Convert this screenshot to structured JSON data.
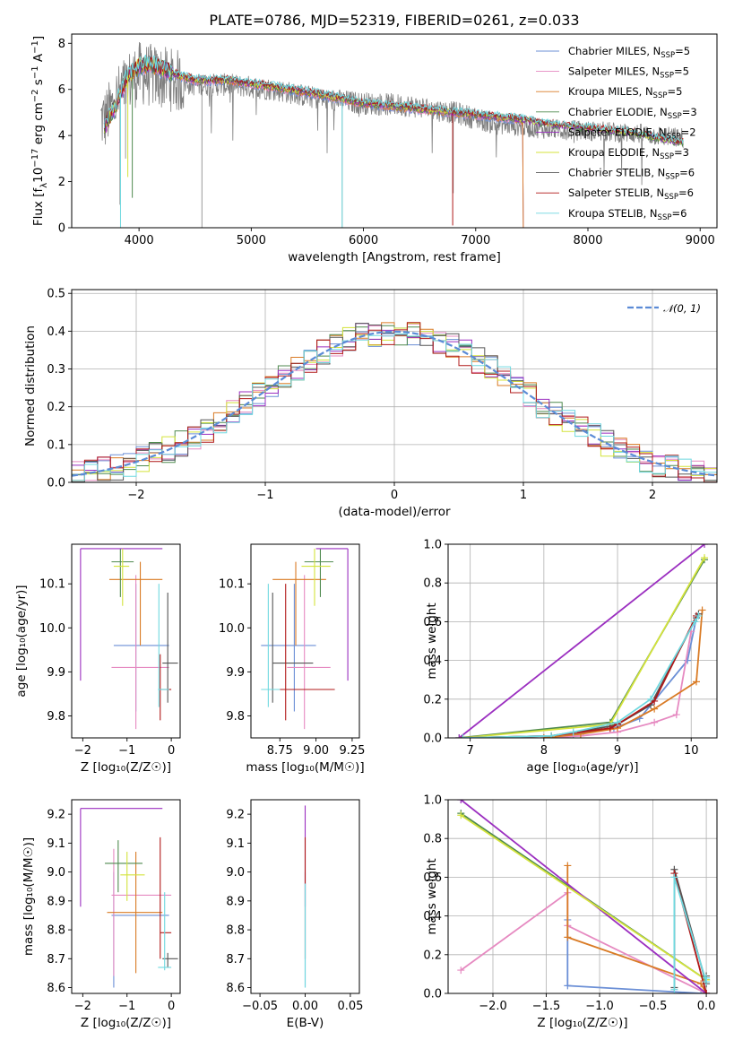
{
  "title": "PLATE=0786, MJD=52319, FIBERID=0261, z=0.033",
  "colors": {
    "Chabrier MILES": "#6b8fd6",
    "Salpeter MILES": "#e68ac1",
    "Kroupa MILES": "#d97b25",
    "Chabrier ELODIE": "#4f8a4f",
    "Salpeter ELODIE": "#9b2fc0",
    "Kroupa ELODIE": "#d4e33b",
    "Chabrier STELIB": "#555555",
    "Salpeter STELIB": "#b01818",
    "Kroupa STELIB": "#6fd8df",
    "data": "#7f7f7f",
    "gauss": "#5b8bd6"
  },
  "chart_data": [
    {
      "id": "spectrum",
      "type": "line",
      "title": "PLATE=0786, MJD=52319, FIBERID=0261, z=0.033",
      "xlabel": "wavelength [Angstrom, rest frame]",
      "ylabel_main": "Flux [f",
      "ylabel_sub": "λ",
      "ylabel_rest1": "10",
      "ylabel_sup1": "−17",
      "ylabel_rest2": " erg cm",
      "ylabel_sup2": "−2",
      "ylabel_rest3": " s",
      "ylabel_sup3": "−1",
      "ylabel_rest4": " A",
      "ylabel_sup4": "−1",
      "ylabel_end": "]",
      "xlim": [
        3400,
        9150
      ],
      "ylim": [
        0,
        8.4
      ],
      "xticks": [
        4000,
        5000,
        6000,
        7000,
        8000,
        9000
      ],
      "yticks": [
        0,
        2,
        4,
        6,
        8
      ],
      "legend_pos": "top-right",
      "legend": [
        {
          "name": "Chabrier MILES, N",
          "sub": "SSP",
          "eq": "=5"
        },
        {
          "name": "Salpeter MILES, N",
          "sub": "SSP",
          "eq": "=5"
        },
        {
          "name": "Kroupa MILES, N",
          "sub": "SSP",
          "eq": "=5"
        },
        {
          "name": "Chabrier ELODIE, N",
          "sub": "SSP",
          "eq": "=3"
        },
        {
          "name": "Salpeter ELODIE, N",
          "sub": "SSP",
          "eq": "=2"
        },
        {
          "name": "Kroupa ELODIE, N",
          "sub": "SSP",
          "eq": "=3"
        },
        {
          "name": "Chabrier STELIB, N",
          "sub": "SSP",
          "eq": "=6"
        },
        {
          "name": "Salpeter STELIB, N",
          "sub": "SSP",
          "eq": "=6"
        },
        {
          "name": "Kroupa STELIB, N",
          "sub": "SSP",
          "eq": "=6"
        }
      ],
      "data_envelope": [
        [
          3700,
          4.7
        ],
        [
          3800,
          5.6
        ],
        [
          3900,
          6.3
        ],
        [
          4000,
          6.7
        ],
        [
          4100,
          6.6
        ],
        [
          4300,
          6.4
        ],
        [
          4500,
          6.2
        ],
        [
          4800,
          6.2
        ],
        [
          5200,
          6.0
        ],
        [
          5600,
          5.6
        ],
        [
          6000,
          5.4
        ],
        [
          6400,
          5.3
        ],
        [
          6800,
          5.0
        ],
        [
          7200,
          4.5
        ],
        [
          7600,
          4.3
        ],
        [
          8000,
          4.2
        ],
        [
          8400,
          4.1
        ],
        [
          8800,
          3.9
        ]
      ],
      "model_envelope": [
        [
          3700,
          4.4
        ],
        [
          3800,
          5.4
        ],
        [
          3900,
          6.6
        ],
        [
          4000,
          7.0
        ],
        [
          4100,
          7.1
        ],
        [
          4300,
          6.7
        ],
        [
          4500,
          6.4
        ],
        [
          4800,
          6.4
        ],
        [
          5200,
          6.1
        ],
        [
          5600,
          5.8
        ],
        [
          6000,
          5.4
        ],
        [
          6400,
          5.2
        ],
        [
          6800,
          5.0
        ],
        [
          7200,
          4.8
        ],
        [
          7400,
          4.7
        ],
        [
          7600,
          4.5
        ],
        [
          8000,
          4.3
        ],
        [
          8400,
          4.1
        ],
        [
          8800,
          3.7
        ]
      ],
      "miles_cutoff": 7420
    },
    {
      "id": "residuals",
      "type": "histogram",
      "xlabel": "(data-model)/error",
      "ylabel": "Normed distribution",
      "xlim": [
        -2.5,
        2.5
      ],
      "ylim": [
        0,
        0.51
      ],
      "xticks": [
        -2,
        -1,
        0,
        1,
        2
      ],
      "yticks": [
        0.0,
        0.1,
        0.2,
        0.3,
        0.4,
        0.5
      ],
      "grid": true,
      "legend_pos": "top-right",
      "legend_label": "𝒩(0, 1)",
      "bin_width": 0.1
    },
    {
      "id": "z-age",
      "type": "errorbar",
      "xlabel": "Z [log₁₀(Z/Z☉)]",
      "ylabel": "age  [log₁₀(age/yr)]",
      "xlim": [
        -2.25,
        0.2
      ],
      "ylim": [
        9.75,
        10.19
      ],
      "xticks": [
        -2,
        -1,
        0
      ],
      "yticks": [
        9.8,
        9.9,
        10.0,
        10.1
      ],
      "points": [
        {
          "c": "Chabrier MILES",
          "x": -0.8,
          "xe": [
            -1.3,
            -0.05
          ],
          "y": 9.96,
          "ye": [
            9.81,
            10.1
          ]
        },
        {
          "c": "Salpeter MILES",
          "x": -0.8,
          "xe": [
            -1.35,
            -0.05
          ],
          "y": 9.91,
          "ye": [
            9.77,
            10.12
          ]
        },
        {
          "c": "Kroupa MILES",
          "x": -0.7,
          "xe": [
            -1.4,
            -0.2
          ],
          "y": 10.11,
          "ye": [
            9.96,
            10.15
          ]
        },
        {
          "c": "Chabrier ELODIE",
          "x": -1.15,
          "xe": [
            -1.35,
            -0.85
          ],
          "y": 10.15,
          "ye": [
            10.07,
            10.18
          ]
        },
        {
          "c": "Salpeter ELODIE",
          "x": -2.05,
          "xe": [
            -2.05,
            -0.2
          ],
          "y": 10.18,
          "ye": [
            9.88,
            10.18
          ]
        },
        {
          "c": "Kroupa ELODIE",
          "x": -1.1,
          "xe": [
            -1.3,
            -0.95
          ],
          "y": 10.14,
          "ye": [
            10.05,
            10.18
          ]
        },
        {
          "c": "Chabrier STELIB",
          "x": -0.08,
          "xe": [
            -0.2,
            0.15
          ],
          "y": 9.92,
          "ye": [
            9.83,
            10.08
          ]
        },
        {
          "c": "Salpeter STELIB",
          "x": -0.25,
          "xe": [
            -0.25,
            0.0
          ],
          "y": 9.86,
          "ye": [
            9.79,
            9.94
          ]
        },
        {
          "c": "Kroupa STELIB",
          "x": -0.28,
          "xe": [
            -0.3,
            -0.05
          ],
          "y": 9.86,
          "ye": [
            9.82,
            10.1
          ]
        }
      ]
    },
    {
      "id": "mass-age",
      "type": "errorbar",
      "xlabel": "mass [log₁₀(M/M☉)]",
      "ylabel": "",
      "xlim": [
        8.55,
        9.3
      ],
      "ylim": [
        9.75,
        10.19
      ],
      "xticks": [
        8.75,
        9.0,
        9.25
      ],
      "yticks": [
        9.8,
        9.9,
        10.0,
        10.1
      ],
      "points": [
        {
          "c": "Chabrier MILES",
          "x": 8.85,
          "xe": [
            8.62,
            9.0
          ],
          "y": 9.96,
          "ye": [
            9.81,
            10.1
          ]
        },
        {
          "c": "Salpeter MILES",
          "x": 8.92,
          "xe": [
            8.8,
            9.1
          ],
          "y": 9.91,
          "ye": [
            9.77,
            10.12
          ]
        },
        {
          "c": "Kroupa MILES",
          "x": 8.86,
          "xe": [
            8.7,
            9.07
          ],
          "y": 10.11,
          "ye": [
            9.96,
            10.15
          ]
        },
        {
          "c": "Chabrier ELODIE",
          "x": 9.03,
          "xe": [
            8.92,
            9.12
          ],
          "y": 10.15,
          "ye": [
            10.07,
            10.18
          ]
        },
        {
          "c": "Salpeter ELODIE",
          "x": 9.22,
          "xe": [
            9.0,
            9.22
          ],
          "y": 10.18,
          "ye": [
            9.88,
            10.18
          ]
        },
        {
          "c": "Kroupa ELODIE",
          "x": 8.99,
          "xe": [
            8.9,
            9.1
          ],
          "y": 10.14,
          "ye": [
            10.05,
            10.18
          ]
        },
        {
          "c": "Chabrier STELIB",
          "x": 8.7,
          "xe": [
            8.7,
            8.98
          ],
          "y": 9.92,
          "ye": [
            9.83,
            10.08
          ]
        },
        {
          "c": "Salpeter STELIB",
          "x": 8.79,
          "xe": [
            8.75,
            9.13
          ],
          "y": 9.86,
          "ye": [
            9.79,
            10.1
          ]
        },
        {
          "c": "Kroupa STELIB",
          "x": 8.67,
          "xe": [
            8.62,
            8.75
          ],
          "y": 9.86,
          "ye": [
            9.82,
            10.1
          ]
        }
      ]
    },
    {
      "id": "age-massweight",
      "type": "line",
      "xlabel": "age  [log₁₀(age/yr)]",
      "ylabel": "mass weight",
      "xlim": [
        6.7,
        10.35
      ],
      "ylim": [
        0,
        1.0
      ],
      "xticks": [
        7,
        8,
        9,
        10
      ],
      "yticks": [
        0.0,
        0.2,
        0.4,
        0.6,
        0.8,
        1.0
      ],
      "grid": true,
      "series": [
        {
          "c": "Chabrier MILES",
          "x": [
            8.0,
            8.4,
            8.95,
            9.3,
            9.95,
            10.07
          ],
          "y": [
            0.0,
            0.02,
            0.05,
            0.1,
            0.4,
            0.62
          ]
        },
        {
          "c": "Salpeter MILES",
          "x": [
            8.0,
            8.5,
            9.0,
            9.5,
            9.8,
            10.0
          ],
          "y": [
            0.0,
            0.01,
            0.03,
            0.08,
            0.12,
            0.55
          ]
        },
        {
          "c": "Kroupa MILES",
          "x": [
            8.0,
            8.5,
            9.0,
            9.5,
            10.07,
            10.15
          ],
          "y": [
            0.0,
            0.02,
            0.05,
            0.15,
            0.29,
            0.66
          ]
        },
        {
          "c": "Chabrier ELODIE",
          "x": [
            6.85,
            8.9,
            10.18
          ],
          "y": [
            0.0,
            0.08,
            0.92
          ]
        },
        {
          "c": "Salpeter ELODIE",
          "x": [
            6.85,
            10.18
          ],
          "y": [
            0.0,
            1.0
          ]
        },
        {
          "c": "Kroupa ELODIE",
          "x": [
            6.9,
            8.9,
            10.18
          ],
          "y": [
            0.0,
            0.07,
            0.93
          ]
        },
        {
          "c": "Chabrier STELIB",
          "x": [
            6.9,
            8.1,
            8.9,
            9.0,
            9.45,
            10.07,
            10.1
          ],
          "y": [
            0.0,
            0.01,
            0.06,
            0.07,
            0.17,
            0.62,
            0.64
          ]
        },
        {
          "c": "Salpeter STELIB",
          "x": [
            6.9,
            8.1,
            8.9,
            9.0,
            9.5,
            10.07
          ],
          "y": [
            0.0,
            0.01,
            0.05,
            0.07,
            0.19,
            0.63
          ]
        },
        {
          "c": "Kroupa STELIB",
          "x": [
            6.9,
            8.1,
            8.4,
            9.0,
            9.45,
            10.05,
            10.1
          ],
          "y": [
            0.0,
            0.01,
            0.03,
            0.08,
            0.2,
            0.6,
            0.63
          ]
        }
      ]
    },
    {
      "id": "z-mass",
      "type": "errorbar",
      "xlabel": "Z [log₁₀(Z/Z☉)]",
      "ylabel": "mass [log₁₀(M/M☉)]",
      "xlim": [
        -2.25,
        0.2
      ],
      "ylim": [
        8.58,
        9.25
      ],
      "xticks": [
        -2,
        -1,
        0
      ],
      "yticks": [
        8.6,
        8.7,
        8.8,
        8.9,
        9.0,
        9.1,
        9.2
      ],
      "points": [
        {
          "c": "Chabrier MILES",
          "x": -1.3,
          "xe": [
            -1.35,
            -0.05
          ],
          "y": 8.85,
          "ye": [
            8.6,
            9.0
          ]
        },
        {
          "c": "Salpeter MILES",
          "x": -1.3,
          "xe": [
            -1.35,
            0.0
          ],
          "y": 8.92,
          "ye": [
            8.64,
            9.08
          ]
        },
        {
          "c": "Kroupa MILES",
          "x": -0.8,
          "xe": [
            -1.45,
            -0.2
          ],
          "y": 8.86,
          "ye": [
            8.65,
            9.07
          ]
        },
        {
          "c": "Chabrier ELODIE",
          "x": -1.2,
          "xe": [
            -1.5,
            -0.65
          ],
          "y": 9.03,
          "ye": [
            8.93,
            9.11
          ]
        },
        {
          "c": "Salpeter ELODIE",
          "x": -2.05,
          "xe": [
            -2.05,
            -0.2
          ],
          "y": 9.22,
          "ye": [
            8.88,
            9.22
          ]
        },
        {
          "c": "Kroupa ELODIE",
          "x": -1.0,
          "xe": [
            -1.15,
            -0.6
          ],
          "y": 8.99,
          "ye": [
            8.9,
            9.07
          ]
        },
        {
          "c": "Chabrier STELIB",
          "x": -0.08,
          "xe": [
            -0.2,
            0.15
          ],
          "y": 8.7,
          "ye": [
            8.67,
            8.72
          ]
        },
        {
          "c": "Salpeter STELIB",
          "x": -0.25,
          "xe": [
            -0.25,
            0.0
          ],
          "y": 8.79,
          "ye": [
            8.7,
            9.12
          ]
        },
        {
          "c": "Kroupa STELIB",
          "x": -0.15,
          "xe": [
            -0.3,
            0.0
          ],
          "y": 8.67,
          "ye": [
            8.66,
            8.93
          ]
        }
      ]
    },
    {
      "id": "ebv-mass",
      "type": "errorbar",
      "xlabel": "E(B-V)",
      "ylabel": "",
      "xlim": [
        -0.06,
        0.06
      ],
      "ylim": [
        8.58,
        9.25
      ],
      "xticks": [
        -0.05,
        0.0,
        0.05
      ],
      "xticklabels": [
        "−0.05",
        "0.00",
        "0.05"
      ],
      "yticks": [
        8.6,
        8.7,
        8.8,
        8.9,
        9.0,
        9.1,
        9.2
      ],
      "points": [
        {
          "c": "Chabrier MILES",
          "x": 0.0,
          "xe": [
            0.0,
            0.0
          ],
          "y": 8.85,
          "ye": [
            8.6,
            9.0
          ]
        },
        {
          "c": "Salpeter ELODIE",
          "x": 0.0,
          "xe": [
            0.0,
            0.0
          ],
          "y": 9.22,
          "ye": [
            8.88,
            9.23
          ]
        },
        {
          "c": "Salpeter STELIB",
          "x": 0.0,
          "xe": [
            0.0,
            0.0
          ],
          "y": 8.79,
          "ye": [
            8.7,
            9.12
          ]
        },
        {
          "c": "Kroupa STELIB",
          "x": 0.0,
          "xe": [
            0.0,
            0.0
          ],
          "y": 8.67,
          "ye": [
            8.6,
            8.96
          ]
        }
      ]
    },
    {
      "id": "z-massweight",
      "type": "line",
      "xlabel": "Z [log₁₀(Z/Z☉)]",
      "ylabel": "mass weight",
      "xlim": [
        -2.42,
        0.1
      ],
      "ylim": [
        0,
        1.0
      ],
      "xticks": [
        -2.0,
        -1.5,
        -1.0,
        -0.5,
        0.0
      ],
      "xticklabels": [
        "−2.0",
        "−1.5",
        "−1.0",
        "−0.5",
        "0.0"
      ],
      "yticks": [
        0.0,
        0.2,
        0.4,
        0.6,
        0.8,
        1.0
      ],
      "grid": true,
      "series": [
        {
          "c": "Chabrier MILES",
          "x": [
            -1.3,
            -1.3,
            -0.05,
            0.0
          ],
          "y": [
            0.38,
            0.04,
            0.0,
            0.0
          ]
        },
        {
          "c": "Salpeter MILES",
          "x": [
            -2.3,
            -1.3,
            -1.3,
            0.0
          ],
          "y": [
            0.12,
            0.52,
            0.35,
            0.0
          ]
        },
        {
          "c": "Kroupa MILES",
          "x": [
            -1.3,
            -1.3,
            -0.05,
            0.0
          ],
          "y": [
            0.66,
            0.29,
            0.05,
            0.0
          ]
        },
        {
          "c": "Chabrier ELODIE",
          "x": [
            -2.3,
            0.0
          ],
          "y": [
            0.93,
            0.07
          ]
        },
        {
          "c": "Salpeter ELODIE",
          "x": [
            -2.3,
            0.0
          ],
          "y": [
            1.0,
            0.0
          ]
        },
        {
          "c": "Kroupa ELODIE",
          "x": [
            -2.3,
            0.0
          ],
          "y": [
            0.92,
            0.07
          ]
        },
        {
          "c": "Chabrier STELIB",
          "x": [
            -0.3,
            -0.3,
            0.0,
            0.0
          ],
          "y": [
            0.03,
            0.64,
            0.05,
            0.09
          ]
        },
        {
          "c": "Salpeter STELIB",
          "x": [
            -0.3,
            0.0
          ],
          "y": [
            0.62,
            0.0
          ]
        },
        {
          "c": "Kroupa STELIB",
          "x": [
            -0.3,
            -0.3,
            0.0,
            0.0
          ],
          "y": [
            0.02,
            0.6,
            0.06,
            0.08
          ]
        }
      ]
    }
  ]
}
